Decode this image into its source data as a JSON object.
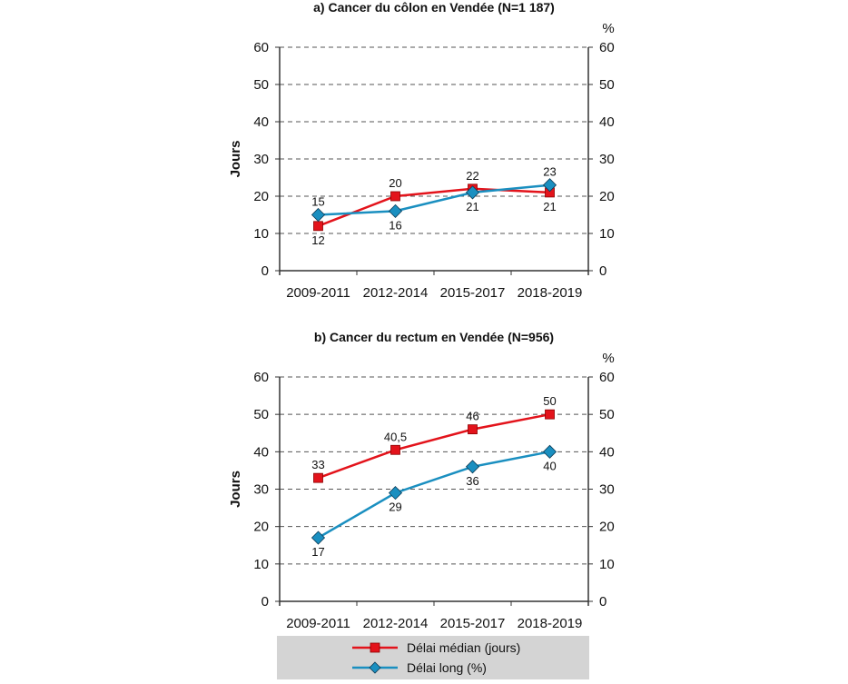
{
  "chart_data": [
    {
      "type": "line",
      "title": "a) Cancer du côlon en Vendée (N=1 187)",
      "ylabel": "Jours",
      "y2label": "%",
      "ylim": [
        0,
        60
      ],
      "yticks": [
        0,
        10,
        20,
        30,
        40,
        50,
        60
      ],
      "grid": true,
      "categories": [
        "2009-2011",
        "2012-2014",
        "2015-2017",
        "2018-2019"
      ],
      "series": [
        {
          "name": "Délai médian (jours)",
          "axis": "left",
          "values": [
            12,
            20,
            22,
            21
          ],
          "label_text": [
            "12",
            "20",
            "22",
            "21"
          ],
          "label_pos": [
            "below",
            "above",
            "above",
            "below"
          ]
        },
        {
          "name": "Délai long (%)",
          "axis": "right",
          "values": [
            15,
            16,
            21,
            23
          ],
          "label_text": [
            "15",
            "16",
            "21",
            "23"
          ],
          "label_pos": [
            "above",
            "below",
            "below",
            "above"
          ]
        }
      ]
    },
    {
      "type": "line",
      "title": "b) Cancer du rectum en Vendée (N=956)",
      "ylabel": "Jours",
      "y2label": "%",
      "ylim": [
        0,
        60
      ],
      "yticks": [
        0,
        10,
        20,
        30,
        40,
        50,
        60
      ],
      "grid": true,
      "categories": [
        "2009-2011",
        "2012-2014",
        "2015-2017",
        "2018-2019"
      ],
      "series": [
        {
          "name": "Délai médian (jours)",
          "axis": "left",
          "values": [
            33,
            40.5,
            46,
            50
          ],
          "label_text": [
            "33",
            "40,5",
            "46",
            "50"
          ],
          "label_pos": [
            "above",
            "above",
            "above",
            "above"
          ]
        },
        {
          "name": "Délai long (%)",
          "axis": "right",
          "values": [
            17,
            29,
            36,
            40
          ],
          "label_text": [
            "17",
            "29",
            "36",
            "40"
          ],
          "label_pos": [
            "below",
            "below",
            "below",
            "below"
          ]
        }
      ]
    }
  ],
  "legend": {
    "position": "bottom",
    "items": [
      {
        "label": "Délai médian (jours)",
        "color": "#e3131b",
        "marker": "square"
      },
      {
        "label": "Délai long (%)",
        "color": "#1a8fc0",
        "marker": "diamond"
      }
    ]
  },
  "colors": {
    "median": "#e3131b",
    "long": "#1a8fc0",
    "legend_bg": "#d4d4d4"
  }
}
